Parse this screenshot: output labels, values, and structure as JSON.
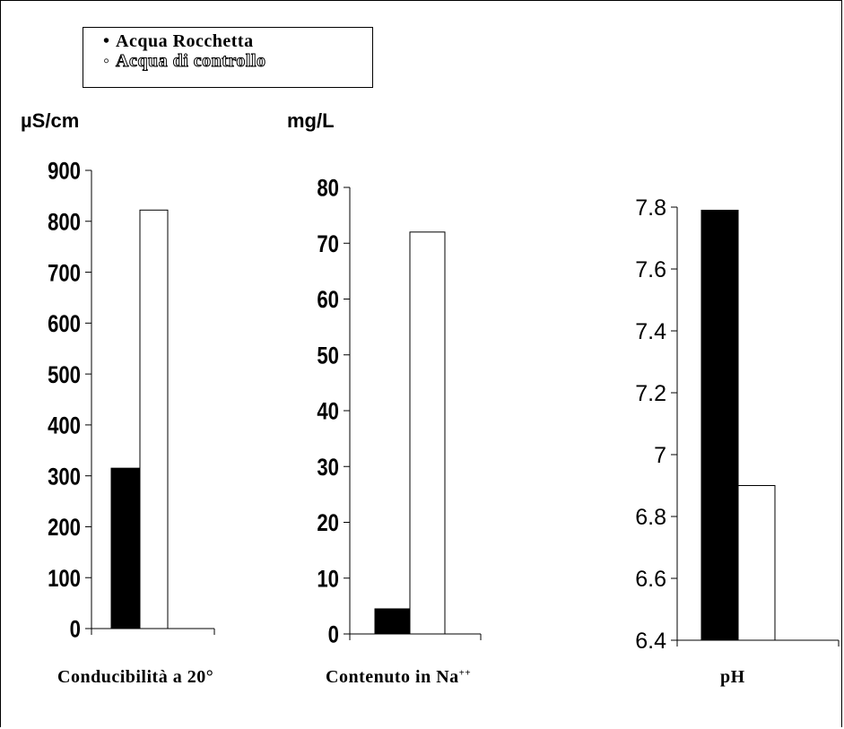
{
  "legend": {
    "items": [
      {
        "marker": "•",
        "label": "Acqua Rocchetta",
        "fill": "#000000"
      },
      {
        "marker": "◦",
        "label": "Acqua di controllo",
        "fill": "#ffffff"
      }
    ]
  },
  "chart_data": [
    {
      "type": "bar",
      "unit_label": "µS/cm",
      "category_label": "Conducibilità a 20°",
      "series": [
        {
          "name": "Acqua Rocchetta",
          "values": [
            315
          ],
          "color": "#000000"
        },
        {
          "name": "Acqua di controllo",
          "values": [
            822
          ],
          "color": "#ffffff"
        }
      ],
      "ylim": [
        0,
        900
      ],
      "yticks": [
        0,
        100,
        200,
        300,
        400,
        500,
        600,
        700,
        800,
        900
      ],
      "tick_labels": [
        "0",
        "100",
        "200",
        "300",
        "400",
        "500",
        "600",
        "700",
        "800",
        "900"
      ],
      "grid": false
    },
    {
      "type": "bar",
      "unit_label": "mg/L",
      "category_label": "Contenuto in Na",
      "category_label_sup": "++",
      "series": [
        {
          "name": "Acqua Rocchetta",
          "values": [
            4.5
          ],
          "color": "#000000"
        },
        {
          "name": "Acqua di controllo",
          "values": [
            72
          ],
          "color": "#ffffff"
        }
      ],
      "ylim": [
        0,
        80
      ],
      "yticks": [
        0,
        10,
        20,
        30,
        40,
        50,
        60,
        70,
        80
      ],
      "tick_labels": [
        "0",
        "10",
        "20",
        "30",
        "40",
        "50",
        "60",
        "70",
        "80"
      ],
      "grid": false
    },
    {
      "type": "bar",
      "category_label": "pH",
      "series": [
        {
          "name": "Acqua Rocchetta",
          "values": [
            7.79
          ],
          "color": "#000000"
        },
        {
          "name": "Acqua di controllo",
          "values": [
            6.9
          ],
          "color": "#ffffff"
        }
      ],
      "ylim": [
        6.4,
        7.8
      ],
      "yticks": [
        6.4,
        6.6,
        6.8,
        7.0,
        7.2,
        7.4,
        7.6,
        7.8
      ],
      "tick_labels": [
        "6.4",
        "6.6",
        "6.8",
        "7",
        "7.2",
        "7.4",
        "7.6",
        "7.8"
      ],
      "grid": false
    }
  ]
}
